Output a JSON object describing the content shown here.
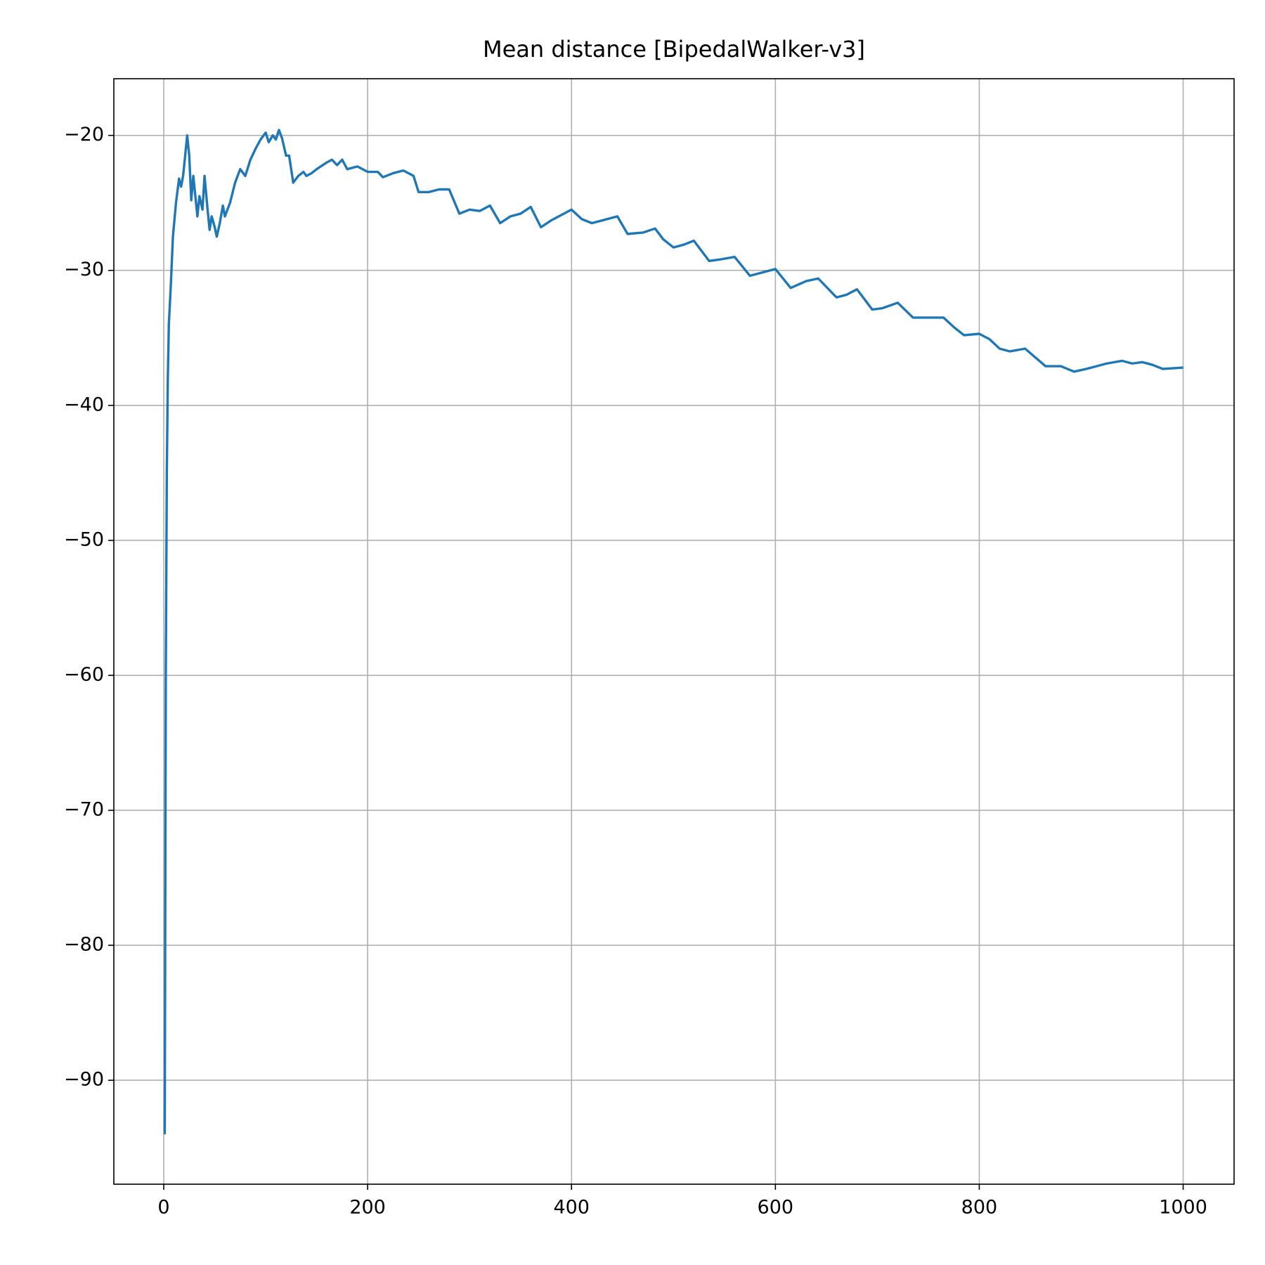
{
  "chart_data": {
    "type": "line",
    "title": "Mean distance [BipedalWalker-v3]",
    "x": [
      1,
      2,
      3,
      4,
      5,
      7,
      9,
      12,
      15,
      17,
      19,
      21,
      23,
      25,
      27,
      29,
      31,
      33,
      35,
      38,
      40,
      43,
      45,
      47,
      50,
      52,
      55,
      58,
      60,
      65,
      70,
      75,
      80,
      85,
      90,
      95,
      100,
      103,
      107,
      110,
      113,
      116,
      120,
      123,
      127,
      132,
      137,
      140,
      145,
      150,
      160,
      165,
      170,
      175,
      180,
      190,
      200,
      210,
      215,
      225,
      235,
      245,
      250,
      260,
      270,
      280,
      290,
      300,
      310,
      320,
      330,
      340,
      350,
      360,
      370,
      380,
      400,
      410,
      420,
      430,
      445,
      455,
      470,
      482,
      490,
      500,
      510,
      520,
      535,
      545,
      560,
      575,
      590,
      600,
      615,
      630,
      642,
      660,
      670,
      680,
      695,
      705,
      720,
      735,
      750,
      765,
      775,
      785,
      800,
      810,
      820,
      830,
      845,
      865,
      880,
      893,
      905,
      915,
      925,
      940,
      950,
      960,
      970,
      980,
      1000
    ],
    "series": [
      {
        "name": "Mean distance",
        "color": "#1f77b4",
        "values": [
          -94,
          -60,
          -45,
          -38,
          -34,
          -31,
          -27.5,
          -25,
          -23.2,
          -23.8,
          -23,
          -21.5,
          -20,
          -21.5,
          -24.8,
          -23,
          -24.5,
          -26,
          -24.5,
          -25.5,
          -23,
          -25.5,
          -27,
          -26,
          -26.8,
          -27.5,
          -26.5,
          -25.2,
          -26,
          -25,
          -23.5,
          -22.5,
          -23,
          -21.8,
          -21,
          -20.3,
          -19.8,
          -20.5,
          -20,
          -20.3,
          -19.6,
          -20.2,
          -21.5,
          -21.5,
          -23.5,
          -23,
          -22.7,
          -23,
          -22.8,
          -22.5,
          -22,
          -21.8,
          -22.2,
          -21.8,
          -22.5,
          -22.3,
          -22.7,
          -22.7,
          -23.1,
          -22.8,
          -22.6,
          -23,
          -24.2,
          -24.2,
          -24,
          -24,
          -25.8,
          -25.5,
          -25.6,
          -25.2,
          -26.5,
          -26,
          -25.8,
          -25.3,
          -26.8,
          -26.3,
          -25.5,
          -26.2,
          -26.5,
          -26.3,
          -26,
          -27.3,
          -27.2,
          -26.9,
          -27.7,
          -28.3,
          -28.1,
          -27.8,
          -29.3,
          -29.2,
          -29,
          -30.4,
          -30.1,
          -29.9,
          -31.3,
          -30.8,
          -30.6,
          -32,
          -31.8,
          -31.4,
          -32.9,
          -32.8,
          -32.4,
          -33.5,
          -33.5,
          -33.5,
          -34.2,
          -34.8,
          -34.7,
          -35.1,
          -35.8,
          -36,
          -35.8,
          -37.1,
          -37.1,
          -37.5,
          -37.3,
          -37.1,
          -36.9,
          -36.7,
          -36.9,
          -36.8,
          -37,
          -37.3,
          -37.2
        ]
      }
    ],
    "xlim": [
      -48.95,
      1049.95
    ],
    "ylim": [
      -97.7,
      -15.8
    ],
    "xticks": [
      0,
      200,
      400,
      600,
      800,
      1000
    ],
    "yticks": [
      {
        "value": -20,
        "label": "−20"
      },
      {
        "value": -30,
        "label": "−30"
      },
      {
        "value": -40,
        "label": "−40"
      },
      {
        "value": -50,
        "label": "−50"
      },
      {
        "value": -60,
        "label": "−60"
      },
      {
        "value": -70,
        "label": "−70"
      },
      {
        "value": -80,
        "label": "−80"
      },
      {
        "value": -90,
        "label": "−90"
      }
    ],
    "grid": true
  }
}
